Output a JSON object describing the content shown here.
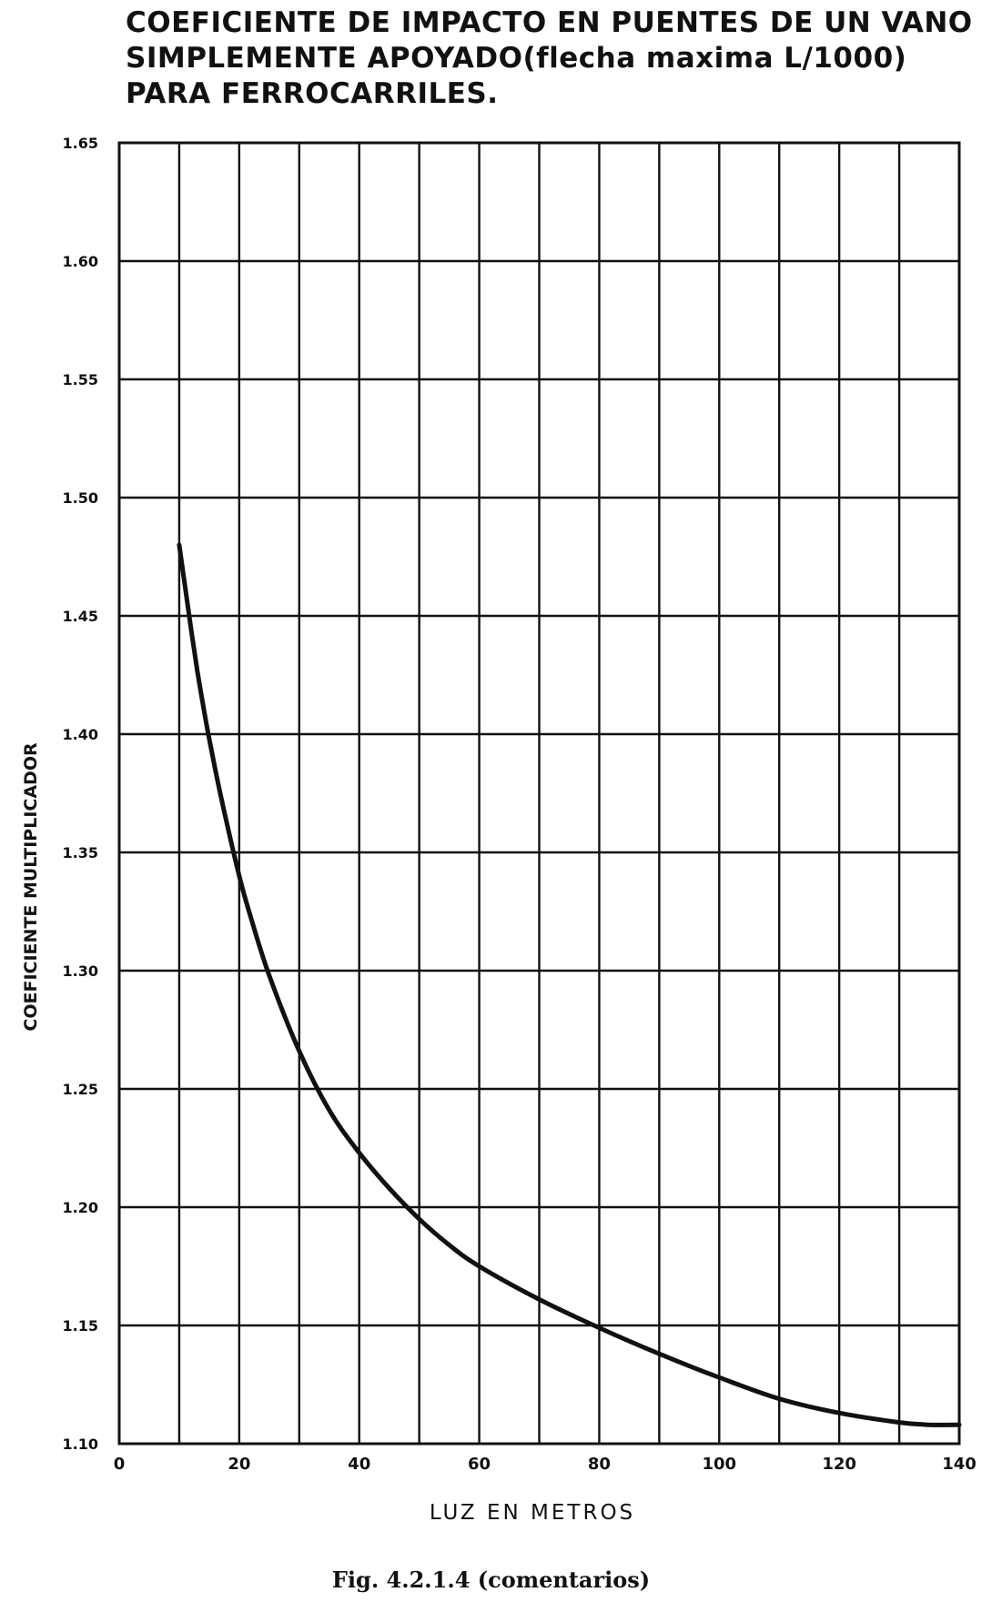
{
  "title_lines": [
    "COEFICIENTE DE IMPACTO EN PUENTES DE UN VANO",
    "SIMPLEMENTE APOYADO(flecha maxima L/1000)",
    "PARA FERROCARRILES."
  ],
  "caption": "Fig. 4.2.1.4 (comentarios)",
  "chart_data": {
    "type": "line",
    "title": "COEFICIENTE DE IMPACTO EN PUENTES DE UN VANO SIMPLEMENTE APOYADO(flecha maxima L/1000) PARA FERROCARRILES.",
    "xlabel": "LUZ EN METROS",
    "ylabel": "COEFICIENTE MULTIPLICADOR",
    "xlim": [
      0,
      140
    ],
    "ylim": [
      1.1,
      1.65
    ],
    "x_ticks": [
      0,
      20,
      40,
      60,
      80,
      100,
      120,
      140
    ],
    "x_tick_labels": [
      "0",
      "20",
      "40",
      "60",
      "80",
      "100",
      "120",
      "140"
    ],
    "y_ticks": [
      1.1,
      1.15,
      1.2,
      1.25,
      1.3,
      1.35,
      1.4,
      1.45,
      1.5,
      1.55,
      1.6,
      1.65
    ],
    "y_tick_labels": [
      "1.10",
      "1.15",
      "1.20",
      "1.25",
      "1.30",
      "1.35",
      "1.40",
      "1.45",
      "1.50",
      "1.55",
      "1.60",
      "1.65"
    ],
    "x_grid_step": 10,
    "y_grid_step": 0.05,
    "grid": true,
    "series": [
      {
        "x": [
          10,
          11,
          12,
          13,
          14,
          15,
          17,
          20,
          22,
          25,
          30,
          35,
          40,
          45,
          50,
          55,
          60,
          70,
          80,
          90,
          100,
          110,
          120,
          130,
          135,
          140
        ],
        "y": [
          1.48,
          1.462,
          1.444,
          1.427,
          1.412,
          1.398,
          1.373,
          1.34,
          1.322,
          1.298,
          1.266,
          1.241,
          1.223,
          1.208,
          1.195,
          1.184,
          1.175,
          1.161,
          1.149,
          1.138,
          1.128,
          1.119,
          1.113,
          1.109,
          1.108,
          1.108
        ]
      }
    ]
  }
}
